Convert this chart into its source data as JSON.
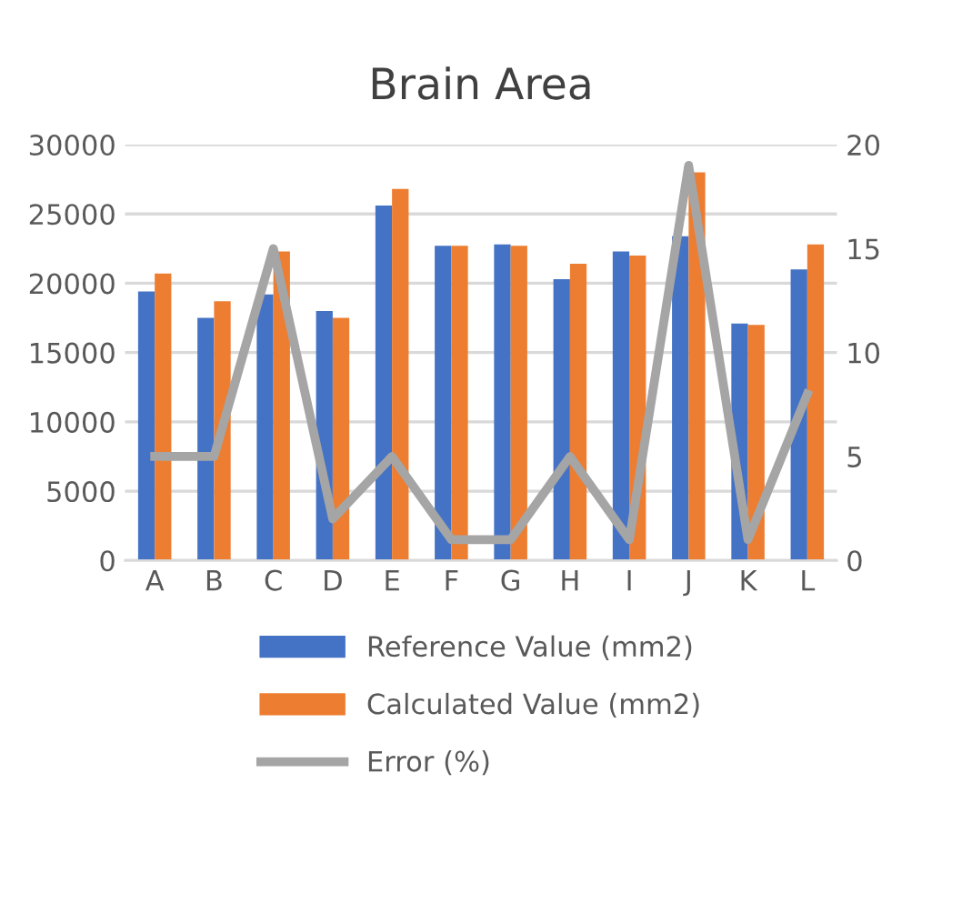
{
  "chart_data": {
    "type": "bar",
    "title": "Brain Area",
    "categories": [
      "A",
      "B",
      "C",
      "D",
      "E",
      "F",
      "G",
      "H",
      "I",
      "J",
      "K",
      "L"
    ],
    "series": [
      {
        "name": "Reference Value (mm2)",
        "color": "#4472c4",
        "values": [
          19400,
          17500,
          19200,
          18000,
          25600,
          22700,
          22800,
          20300,
          22300,
          23400,
          17100,
          21000
        ]
      },
      {
        "name": "Calculated Value (mm2)",
        "color": "#ed7d31",
        "values": [
          20700,
          18700,
          22300,
          17500,
          26800,
          22700,
          22700,
          21400,
          22000,
          28000,
          17000,
          22800
        ]
      },
      {
        "name": "Error (%)",
        "color": "#a5a5a5",
        "type": "line",
        "axis": "y2",
        "values": [
          5,
          5,
          15,
          2,
          5,
          1,
          1,
          5,
          1,
          19,
          1,
          8
        ]
      }
    ],
    "ylim": [
      0,
      30000
    ],
    "yticks": [
      0,
      5000,
      10000,
      15000,
      20000,
      25000,
      30000
    ],
    "y2lim": [
      0,
      20
    ],
    "y2ticks": [
      0,
      5,
      10,
      15,
      20
    ],
    "grid": "y",
    "legend": "bottom",
    "marker": "none",
    "line_style": "solid"
  }
}
